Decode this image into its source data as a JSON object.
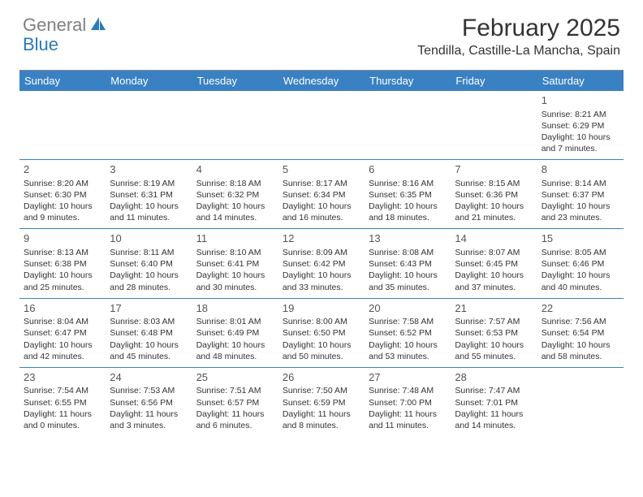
{
  "brand": {
    "text_gray": "General",
    "text_blue": "Blue"
  },
  "title": "February 2025",
  "location": "Tendilla, Castille-La Mancha, Spain",
  "colors": {
    "header_bg": "#3a81c4",
    "header_text": "#ffffff",
    "border": "#3a81c4",
    "brand_gray": "#808080",
    "brand_blue": "#2a7ab8",
    "text": "#333333",
    "bg": "#ffffff"
  },
  "typography": {
    "title_fontsize": 30,
    "location_fontsize": 16,
    "day_header_fontsize": 13,
    "daynum_fontsize": 13,
    "cell_fontsize": 10.5
  },
  "day_names": [
    "Sunday",
    "Monday",
    "Tuesday",
    "Wednesday",
    "Thursday",
    "Friday",
    "Saturday"
  ],
  "weeks": [
    [
      {
        "num": "",
        "sunrise": "",
        "sunset": "",
        "daylight": ""
      },
      {
        "num": "",
        "sunrise": "",
        "sunset": "",
        "daylight": ""
      },
      {
        "num": "",
        "sunrise": "",
        "sunset": "",
        "daylight": ""
      },
      {
        "num": "",
        "sunrise": "",
        "sunset": "",
        "daylight": ""
      },
      {
        "num": "",
        "sunrise": "",
        "sunset": "",
        "daylight": ""
      },
      {
        "num": "",
        "sunrise": "",
        "sunset": "",
        "daylight": ""
      },
      {
        "num": "1",
        "sunrise": "Sunrise: 8:21 AM",
        "sunset": "Sunset: 6:29 PM",
        "daylight": "Daylight: 10 hours and 7 minutes."
      }
    ],
    [
      {
        "num": "2",
        "sunrise": "Sunrise: 8:20 AM",
        "sunset": "Sunset: 6:30 PM",
        "daylight": "Daylight: 10 hours and 9 minutes."
      },
      {
        "num": "3",
        "sunrise": "Sunrise: 8:19 AM",
        "sunset": "Sunset: 6:31 PM",
        "daylight": "Daylight: 10 hours and 11 minutes."
      },
      {
        "num": "4",
        "sunrise": "Sunrise: 8:18 AM",
        "sunset": "Sunset: 6:32 PM",
        "daylight": "Daylight: 10 hours and 14 minutes."
      },
      {
        "num": "5",
        "sunrise": "Sunrise: 8:17 AM",
        "sunset": "Sunset: 6:34 PM",
        "daylight": "Daylight: 10 hours and 16 minutes."
      },
      {
        "num": "6",
        "sunrise": "Sunrise: 8:16 AM",
        "sunset": "Sunset: 6:35 PM",
        "daylight": "Daylight: 10 hours and 18 minutes."
      },
      {
        "num": "7",
        "sunrise": "Sunrise: 8:15 AM",
        "sunset": "Sunset: 6:36 PM",
        "daylight": "Daylight: 10 hours and 21 minutes."
      },
      {
        "num": "8",
        "sunrise": "Sunrise: 8:14 AM",
        "sunset": "Sunset: 6:37 PM",
        "daylight": "Daylight: 10 hours and 23 minutes."
      }
    ],
    [
      {
        "num": "9",
        "sunrise": "Sunrise: 8:13 AM",
        "sunset": "Sunset: 6:38 PM",
        "daylight": "Daylight: 10 hours and 25 minutes."
      },
      {
        "num": "10",
        "sunrise": "Sunrise: 8:11 AM",
        "sunset": "Sunset: 6:40 PM",
        "daylight": "Daylight: 10 hours and 28 minutes."
      },
      {
        "num": "11",
        "sunrise": "Sunrise: 8:10 AM",
        "sunset": "Sunset: 6:41 PM",
        "daylight": "Daylight: 10 hours and 30 minutes."
      },
      {
        "num": "12",
        "sunrise": "Sunrise: 8:09 AM",
        "sunset": "Sunset: 6:42 PM",
        "daylight": "Daylight: 10 hours and 33 minutes."
      },
      {
        "num": "13",
        "sunrise": "Sunrise: 8:08 AM",
        "sunset": "Sunset: 6:43 PM",
        "daylight": "Daylight: 10 hours and 35 minutes."
      },
      {
        "num": "14",
        "sunrise": "Sunrise: 8:07 AM",
        "sunset": "Sunset: 6:45 PM",
        "daylight": "Daylight: 10 hours and 37 minutes."
      },
      {
        "num": "15",
        "sunrise": "Sunrise: 8:05 AM",
        "sunset": "Sunset: 6:46 PM",
        "daylight": "Daylight: 10 hours and 40 minutes."
      }
    ],
    [
      {
        "num": "16",
        "sunrise": "Sunrise: 8:04 AM",
        "sunset": "Sunset: 6:47 PM",
        "daylight": "Daylight: 10 hours and 42 minutes."
      },
      {
        "num": "17",
        "sunrise": "Sunrise: 8:03 AM",
        "sunset": "Sunset: 6:48 PM",
        "daylight": "Daylight: 10 hours and 45 minutes."
      },
      {
        "num": "18",
        "sunrise": "Sunrise: 8:01 AM",
        "sunset": "Sunset: 6:49 PM",
        "daylight": "Daylight: 10 hours and 48 minutes."
      },
      {
        "num": "19",
        "sunrise": "Sunrise: 8:00 AM",
        "sunset": "Sunset: 6:50 PM",
        "daylight": "Daylight: 10 hours and 50 minutes."
      },
      {
        "num": "20",
        "sunrise": "Sunrise: 7:58 AM",
        "sunset": "Sunset: 6:52 PM",
        "daylight": "Daylight: 10 hours and 53 minutes."
      },
      {
        "num": "21",
        "sunrise": "Sunrise: 7:57 AM",
        "sunset": "Sunset: 6:53 PM",
        "daylight": "Daylight: 10 hours and 55 minutes."
      },
      {
        "num": "22",
        "sunrise": "Sunrise: 7:56 AM",
        "sunset": "Sunset: 6:54 PM",
        "daylight": "Daylight: 10 hours and 58 minutes."
      }
    ],
    [
      {
        "num": "23",
        "sunrise": "Sunrise: 7:54 AM",
        "sunset": "Sunset: 6:55 PM",
        "daylight": "Daylight: 11 hours and 0 minutes."
      },
      {
        "num": "24",
        "sunrise": "Sunrise: 7:53 AM",
        "sunset": "Sunset: 6:56 PM",
        "daylight": "Daylight: 11 hours and 3 minutes."
      },
      {
        "num": "25",
        "sunrise": "Sunrise: 7:51 AM",
        "sunset": "Sunset: 6:57 PM",
        "daylight": "Daylight: 11 hours and 6 minutes."
      },
      {
        "num": "26",
        "sunrise": "Sunrise: 7:50 AM",
        "sunset": "Sunset: 6:59 PM",
        "daylight": "Daylight: 11 hours and 8 minutes."
      },
      {
        "num": "27",
        "sunrise": "Sunrise: 7:48 AM",
        "sunset": "Sunset: 7:00 PM",
        "daylight": "Daylight: 11 hours and 11 minutes."
      },
      {
        "num": "28",
        "sunrise": "Sunrise: 7:47 AM",
        "sunset": "Sunset: 7:01 PM",
        "daylight": "Daylight: 11 hours and 14 minutes."
      },
      {
        "num": "",
        "sunrise": "",
        "sunset": "",
        "daylight": ""
      }
    ]
  ]
}
